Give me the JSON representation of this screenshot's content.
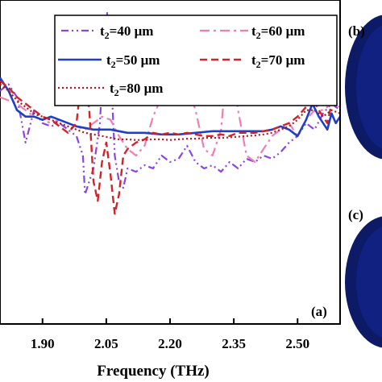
{
  "chart_data": {
    "type": "line",
    "xlabel": "Frequency (THz)",
    "x_ticks": [
      "1.90",
      "2.05",
      "2.20",
      "2.35",
      "2.50"
    ],
    "x_tick_values": [
      1.9,
      2.05,
      2.2,
      2.35,
      2.5
    ],
    "xlim": [
      1.8,
      2.6
    ],
    "ylim": [
      0,
      1
    ],
    "panel_label": "(a)",
    "side_panel_labels": [
      "(b)",
      "(c)"
    ],
    "legend_placement": "top-right",
    "series": [
      {
        "name": "40 μm",
        "color": "#8B45E6",
        "style": "dash-dot-dot",
        "points": [
          [
            1.8,
            0.72
          ],
          [
            1.82,
            0.74
          ],
          [
            1.84,
            0.7
          ],
          [
            1.86,
            0.56
          ],
          [
            1.88,
            0.66
          ],
          [
            1.9,
            0.62
          ],
          [
            1.92,
            0.61
          ],
          [
            1.94,
            0.62
          ],
          [
            1.96,
            0.6
          ],
          [
            1.98,
            0.58
          ],
          [
            1.995,
            0.52
          ],
          [
            2.0,
            0.4
          ],
          [
            2.02,
            0.48
          ],
          [
            2.035,
            0.62
          ],
          [
            2.045,
            0.88
          ],
          [
            2.052,
            0.96
          ],
          [
            2.06,
            0.8
          ],
          [
            2.07,
            0.52
          ],
          [
            2.08,
            0.44
          ],
          [
            2.09,
            0.42
          ],
          [
            2.1,
            0.48
          ],
          [
            2.12,
            0.47
          ],
          [
            2.14,
            0.49
          ],
          [
            2.16,
            0.48
          ],
          [
            2.18,
            0.52
          ],
          [
            2.2,
            0.5
          ],
          [
            2.22,
            0.51
          ],
          [
            2.24,
            0.55
          ],
          [
            2.26,
            0.5
          ],
          [
            2.28,
            0.48
          ],
          [
            2.3,
            0.49
          ],
          [
            2.32,
            0.47
          ],
          [
            2.34,
            0.5
          ],
          [
            2.36,
            0.48
          ],
          [
            2.38,
            0.51
          ],
          [
            2.4,
            0.5
          ],
          [
            2.42,
            0.52
          ],
          [
            2.44,
            0.51
          ],
          [
            2.46,
            0.53
          ],
          [
            2.48,
            0.56
          ],
          [
            2.5,
            0.58
          ],
          [
            2.52,
            0.62
          ],
          [
            2.54,
            0.6
          ],
          [
            2.56,
            0.65
          ],
          [
            2.58,
            0.68
          ],
          [
            2.6,
            0.66
          ]
        ]
      },
      {
        "name": "60 μm",
        "color": "#F07DB5",
        "style": "dash-dot",
        "points": [
          [
            1.8,
            0.7
          ],
          [
            1.82,
            0.69
          ],
          [
            1.84,
            0.68
          ],
          [
            1.86,
            0.66
          ],
          [
            1.88,
            0.64
          ],
          [
            1.9,
            0.63
          ],
          [
            1.92,
            0.62
          ],
          [
            1.94,
            0.63
          ],
          [
            1.96,
            0.62
          ],
          [
            1.98,
            0.61
          ],
          [
            2.0,
            0.6
          ],
          [
            2.02,
            0.62
          ],
          [
            2.04,
            0.64
          ],
          [
            2.06,
            0.63
          ],
          [
            2.08,
            0.58
          ],
          [
            2.1,
            0.54
          ],
          [
            2.12,
            0.52
          ],
          [
            2.14,
            0.55
          ],
          [
            2.16,
            0.64
          ],
          [
            2.18,
            0.7
          ],
          [
            2.2,
            0.69
          ],
          [
            2.22,
            0.72
          ],
          [
            2.24,
            0.74
          ],
          [
            2.26,
            0.66
          ],
          [
            2.28,
            0.54
          ],
          [
            2.3,
            0.52
          ],
          [
            2.32,
            0.6
          ],
          [
            2.335,
            0.82
          ],
          [
            2.345,
            0.8
          ],
          [
            2.36,
            0.66
          ],
          [
            2.38,
            0.52
          ],
          [
            2.4,
            0.5
          ],
          [
            2.42,
            0.54
          ],
          [
            2.44,
            0.58
          ],
          [
            2.46,
            0.6
          ],
          [
            2.48,
            0.62
          ],
          [
            2.5,
            0.58
          ],
          [
            2.52,
            0.63
          ],
          [
            2.54,
            0.66
          ],
          [
            2.56,
            0.66
          ],
          [
            2.58,
            0.68
          ],
          [
            2.6,
            0.67
          ]
        ]
      },
      {
        "name": "50 μm",
        "color": "#1F3FC8",
        "style": "solid",
        "points": [
          [
            1.8,
            0.76
          ],
          [
            1.82,
            0.72
          ],
          [
            1.84,
            0.66
          ],
          [
            1.86,
            0.64
          ],
          [
            1.88,
            0.64
          ],
          [
            1.9,
            0.63
          ],
          [
            1.92,
            0.64
          ],
          [
            1.94,
            0.63
          ],
          [
            1.96,
            0.62
          ],
          [
            1.98,
            0.61
          ],
          [
            2.0,
            0.605
          ],
          [
            2.02,
            0.6
          ],
          [
            2.04,
            0.6
          ],
          [
            2.06,
            0.6
          ],
          [
            2.08,
            0.595
          ],
          [
            2.1,
            0.59
          ],
          [
            2.14,
            0.59
          ],
          [
            2.18,
            0.585
          ],
          [
            2.22,
            0.585
          ],
          [
            2.26,
            0.59
          ],
          [
            2.3,
            0.595
          ],
          [
            2.34,
            0.595
          ],
          [
            2.38,
            0.595
          ],
          [
            2.42,
            0.595
          ],
          [
            2.44,
            0.6
          ],
          [
            2.46,
            0.61
          ],
          [
            2.48,
            0.6
          ],
          [
            2.5,
            0.58
          ],
          [
            2.52,
            0.63
          ],
          [
            2.535,
            0.68
          ],
          [
            2.55,
            0.64
          ],
          [
            2.57,
            0.6
          ],
          [
            2.58,
            0.65
          ],
          [
            2.59,
            0.62
          ],
          [
            2.6,
            0.64
          ]
        ]
      },
      {
        "name": "70 μm",
        "color": "#D2232A",
        "style": "dashed",
        "points": [
          [
            1.8,
            0.75
          ],
          [
            1.82,
            0.73
          ],
          [
            1.84,
            0.7
          ],
          [
            1.86,
            0.68
          ],
          [
            1.88,
            0.66
          ],
          [
            1.9,
            0.64
          ],
          [
            1.92,
            0.63
          ],
          [
            1.94,
            0.61
          ],
          [
            1.96,
            0.59
          ],
          [
            1.98,
            0.62
          ],
          [
            1.99,
            0.74
          ],
          [
            2.0,
            0.78
          ],
          [
            2.01,
            0.66
          ],
          [
            2.02,
            0.44
          ],
          [
            2.03,
            0.38
          ],
          [
            2.04,
            0.5
          ],
          [
            2.05,
            0.56
          ],
          [
            2.06,
            0.46
          ],
          [
            2.07,
            0.34
          ],
          [
            2.08,
            0.4
          ],
          [
            2.09,
            0.52
          ],
          [
            2.1,
            0.54
          ],
          [
            2.12,
            0.56
          ],
          [
            2.14,
            0.57
          ],
          [
            2.16,
            0.59
          ],
          [
            2.18,
            0.585
          ],
          [
            2.2,
            0.59
          ],
          [
            2.22,
            0.585
          ],
          [
            2.24,
            0.59
          ],
          [
            2.26,
            0.585
          ],
          [
            2.28,
            0.58
          ],
          [
            2.3,
            0.58
          ],
          [
            2.32,
            0.585
          ],
          [
            2.34,
            0.58
          ],
          [
            2.36,
            0.59
          ],
          [
            2.38,
            0.59
          ],
          [
            2.4,
            0.59
          ],
          [
            2.42,
            0.595
          ],
          [
            2.44,
            0.6
          ],
          [
            2.46,
            0.61
          ],
          [
            2.48,
            0.62
          ],
          [
            2.5,
            0.64
          ],
          [
            2.52,
            0.67
          ],
          [
            2.535,
            0.7
          ],
          [
            2.55,
            0.66
          ],
          [
            2.57,
            0.62
          ],
          [
            2.58,
            0.68
          ],
          [
            2.6,
            0.68
          ]
        ]
      },
      {
        "name": "80 μm",
        "color": "#B3171C",
        "style": "dotted",
        "points": [
          [
            1.8,
            0.74
          ],
          [
            1.82,
            0.72
          ],
          [
            1.84,
            0.69
          ],
          [
            1.86,
            0.67
          ],
          [
            1.88,
            0.65
          ],
          [
            1.9,
            0.64
          ],
          [
            1.92,
            0.63
          ],
          [
            1.94,
            0.62
          ],
          [
            1.96,
            0.61
          ],
          [
            1.98,
            0.6
          ],
          [
            2.0,
            0.59
          ],
          [
            2.02,
            0.585
          ],
          [
            2.04,
            0.58
          ],
          [
            2.06,
            0.575
          ],
          [
            2.08,
            0.57
          ],
          [
            2.1,
            0.57
          ],
          [
            2.12,
            0.568
          ],
          [
            2.14,
            0.568
          ],
          [
            2.16,
            0.57
          ],
          [
            2.18,
            0.57
          ],
          [
            2.2,
            0.568
          ],
          [
            2.22,
            0.57
          ],
          [
            2.24,
            0.572
          ],
          [
            2.26,
            0.572
          ],
          [
            2.28,
            0.574
          ],
          [
            2.3,
            0.575
          ],
          [
            2.32,
            0.574
          ],
          [
            2.34,
            0.576
          ],
          [
            2.36,
            0.578
          ],
          [
            2.38,
            0.58
          ],
          [
            2.4,
            0.582
          ],
          [
            2.42,
            0.585
          ],
          [
            2.44,
            0.59
          ],
          [
            2.46,
            0.6
          ],
          [
            2.48,
            0.61
          ],
          [
            2.5,
            0.63
          ],
          [
            2.52,
            0.66
          ],
          [
            2.54,
            0.66
          ],
          [
            2.56,
            0.64
          ],
          [
            2.58,
            0.66
          ],
          [
            2.6,
            0.65
          ]
        ]
      }
    ]
  },
  "legend": {
    "prefix": "t",
    "subscript": "2",
    "items": [
      {
        "label": "=40  μm"
      },
      {
        "label": "=60 μm"
      },
      {
        "label": "=50 μm"
      },
      {
        "label": "=70 μm"
      },
      {
        "label": "=80 μm"
      }
    ]
  }
}
